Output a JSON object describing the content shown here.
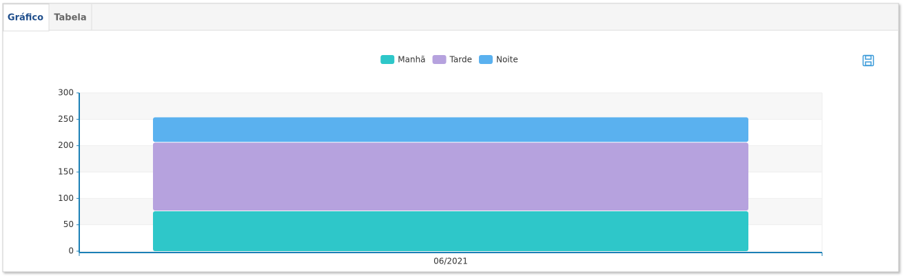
{
  "tabs": [
    "Gráfico",
    "Tabela"
  ],
  "chart_data": {
    "type": "stacked-bar",
    "categories": [
      "06/2021"
    ],
    "series": [
      {
        "name": "Manhã",
        "color": "#2ec7c9",
        "values": [
          77
        ]
      },
      {
        "name": "Tarde",
        "color": "#b6a2de",
        "values": [
          130
        ]
      },
      {
        "name": "Noite",
        "color": "#5ab1ef",
        "values": [
          48
        ]
      }
    ],
    "ylim": [
      0,
      300
    ],
    "yticks": [
      0,
      50,
      100,
      150,
      200,
      250,
      300
    ],
    "legend": "top"
  }
}
